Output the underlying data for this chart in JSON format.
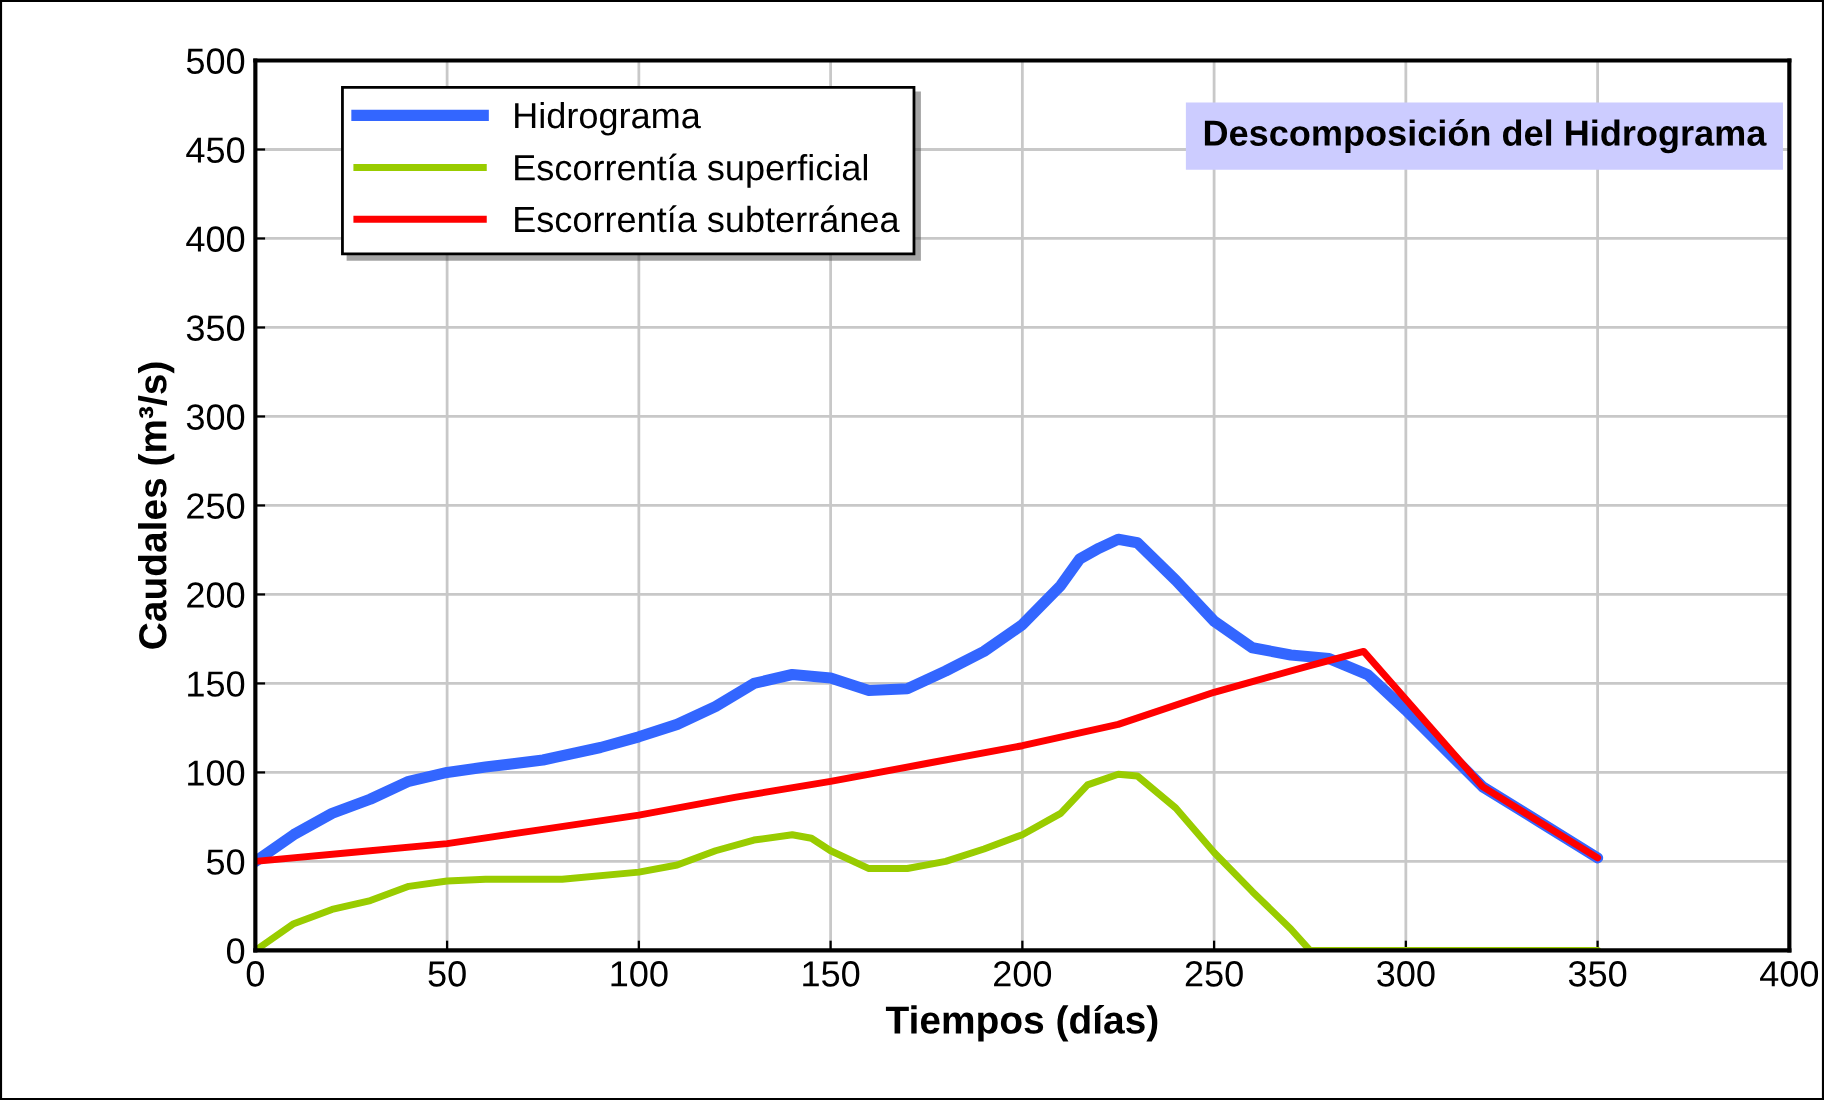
{
  "chart_data": {
    "type": "line",
    "title": "Descomposición del Hidrograma",
    "xlabel": "Tiempos (días)",
    "ylabel": "Caudales (m³/s)",
    "xlim": [
      0,
      400
    ],
    "ylim": [
      0,
      500
    ],
    "xticks": [
      0,
      50,
      100,
      150,
      200,
      250,
      300,
      350,
      400
    ],
    "yticks": [
      0,
      50,
      100,
      150,
      200,
      250,
      300,
      350,
      400,
      450,
      500
    ],
    "grid": true,
    "legend": "top left",
    "marker": "none",
    "line_style": "solid",
    "series": [
      {
        "name": "Hidrograma",
        "color": "#3366ff",
        "x": [
          0,
          10,
          20,
          30,
          40,
          50,
          60,
          75,
          90,
          100,
          110,
          120,
          130,
          140,
          150,
          160,
          170,
          180,
          190,
          200,
          210,
          215,
          220,
          225,
          230,
          240,
          250,
          260,
          270,
          280,
          290,
          300,
          320,
          335,
          350
        ],
        "values": [
          50,
          65,
          77,
          85,
          95,
          100,
          103,
          107,
          114,
          120,
          127,
          137,
          150,
          155,
          153,
          146,
          147,
          157,
          168,
          183,
          205,
          220,
          226,
          231,
          229,
          208,
          185,
          170,
          166,
          164,
          155,
          135,
          92,
          72,
          52
        ]
      },
      {
        "name": "Escorrentía superficial",
        "color": "#99cc00",
        "x": [
          0,
          10,
          20,
          30,
          40,
          50,
          60,
          80,
          100,
          110,
          120,
          130,
          140,
          145,
          150,
          160,
          170,
          180,
          190,
          200,
          210,
          217,
          225,
          230,
          240,
          250,
          260,
          270,
          275,
          300,
          320,
          350
        ],
        "values": [
          0,
          15,
          23,
          28,
          36,
          39,
          40,
          40,
          44,
          48,
          56,
          62,
          65,
          63,
          56,
          46,
          46,
          50,
          57,
          65,
          77,
          93,
          99,
          98,
          80,
          55,
          33,
          12,
          0,
          0,
          0,
          0
        ]
      },
      {
        "name": "Escorrentía subterránea",
        "color": "#ff0000",
        "x": [
          0,
          25,
          50,
          75,
          100,
          125,
          150,
          175,
          200,
          225,
          250,
          275,
          289,
          320,
          350
        ],
        "values": [
          50,
          55,
          60,
          68,
          76,
          86,
          95,
          105,
          115,
          127,
          145,
          160,
          168,
          92,
          52
        ]
      }
    ]
  }
}
